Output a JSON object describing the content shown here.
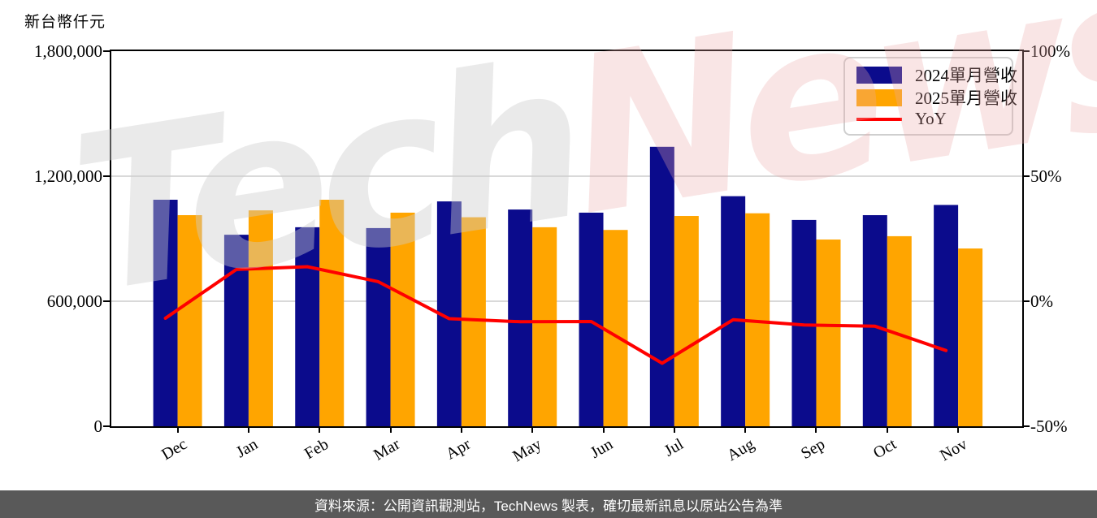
{
  "chart": {
    "unit_label": "新台幣仟元",
    "colors": {
      "bar_2024": "#0b0b8c",
      "bar_2025": "#ffa500",
      "yoy_line": "#ff0000",
      "grid": "#d9d9d9",
      "spine": "#000000",
      "footer_bg": "#595959",
      "watermark_gray": "rgba(205,205,205,0.42)",
      "watermark_pink": "rgba(236,170,170,0.30)"
    },
    "legend": [
      {
        "label": "2024單月營收",
        "type": "bar",
        "color_key": "bar_2024"
      },
      {
        "label": "2025單月營收",
        "type": "bar",
        "color_key": "bar_2025"
      },
      {
        "label": "YoY",
        "type": "line",
        "color_key": "yoy_line"
      }
    ]
  },
  "chart_data": {
    "type": "bar",
    "title": "",
    "xlabel": "",
    "ylabel": "新台幣仟元",
    "categories": [
      "Dec",
      "Jan",
      "Feb",
      "Mar",
      "Apr",
      "May",
      "Jun",
      "Jul",
      "Aug",
      "Sep",
      "Oct",
      "Nov"
    ],
    "series": [
      {
        "name": "2024單月營收",
        "type": "bar",
        "axis": "left",
        "values": [
          1087000,
          919000,
          955000,
          951000,
          1079000,
          1040000,
          1025000,
          1341000,
          1104000,
          990000,
          1013000,
          1062000
        ]
      },
      {
        "name": "2025單月營收",
        "type": "bar",
        "axis": "left",
        "values": [
          1013000,
          1036000,
          1087000,
          1025000,
          1003000,
          955000,
          942000,
          1009000,
          1022000,
          896000,
          912000,
          853000
        ]
      },
      {
        "name": "YoY",
        "type": "line",
        "axis": "right",
        "unit": "%",
        "values": [
          -6.8,
          12.7,
          13.8,
          7.8,
          -7.0,
          -8.2,
          -8.1,
          -24.8,
          -7.4,
          -9.5,
          -10.0,
          -19.7
        ]
      }
    ],
    "left_axis": {
      "range": [
        0,
        1800000
      ],
      "tick_values": [
        0,
        600000,
        1200000,
        1800000
      ],
      "tick_labels": [
        "0",
        "600,000",
        "1,200,000",
        "1,800,000"
      ]
    },
    "right_axis": {
      "range": [
        -50,
        100
      ],
      "tick_values": [
        -50,
        0,
        50,
        100
      ],
      "tick_labels": [
        "-50%",
        "0%",
        "50%",
        "100%"
      ]
    },
    "gridline_values": [
      600000,
      1200000
    ],
    "grid": true,
    "legend_position": "upper right"
  },
  "watermark": {
    "part1": "Tech",
    "part2": "News"
  },
  "footer": {
    "text": "資料來源：公開資訊觀測站，TechNews 製表，確切最新訊息以原站公告為準"
  }
}
